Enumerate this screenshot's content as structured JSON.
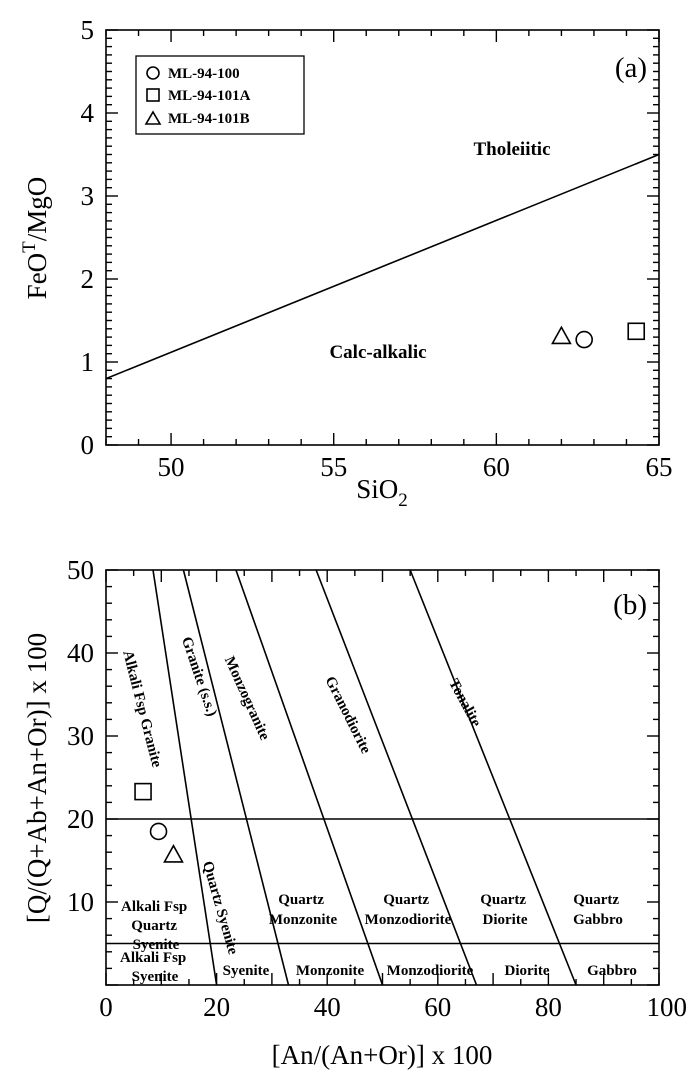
{
  "chart_data": [
    {
      "type": "scatter",
      "panel_label": "(a)",
      "xlabel": "SiO",
      "xlabel_sub": "2",
      "ylabel": "FeO",
      "ylabel_sup": "T",
      "ylabel_tail": "/MgO",
      "xlim": [
        48,
        65
      ],
      "ylim": [
        0,
        5
      ],
      "xticks": [
        "50",
        "55",
        "60",
        "65"
      ],
      "yticks": [
        "0",
        "1",
        "2",
        "3",
        "4",
        "5"
      ],
      "boundary_line": {
        "x": [
          48,
          65
        ],
        "y": [
          0.8,
          3.5
        ]
      },
      "field_labels": [
        "Tholeiitic",
        "Calc-alkalic"
      ],
      "series": [
        {
          "name": "ML-94-100",
          "marker": "circle",
          "x": [
            62.7
          ],
          "y": [
            1.27
          ]
        },
        {
          "name": "ML-94-101A",
          "marker": "square",
          "x": [
            64.3
          ],
          "y": [
            1.37
          ]
        },
        {
          "name": "ML-94-101B",
          "marker": "triangle",
          "x": [
            62.0
          ],
          "y": [
            1.31
          ]
        }
      ],
      "legend_position": "top-left"
    },
    {
      "type": "scatter",
      "panel_label": "(b)",
      "xlabel": "[An/(An+Or)] x 100",
      "ylabel": "[Q/(Q+Ab+An+Or)] x 100",
      "xlim": [
        0,
        100
      ],
      "ylim": [
        0,
        50
      ],
      "xticks": [
        "0",
        "20",
        "40",
        "60",
        "80",
        "100"
      ],
      "yticks": [
        "10",
        "20",
        "30",
        "40",
        "50"
      ],
      "horizontal_boundaries": [
        20,
        5
      ],
      "field_lines": [
        {
          "x": [
            8.5,
            20
          ],
          "y": [
            50,
            0
          ]
        },
        {
          "x": [
            14,
            33
          ],
          "y": [
            50,
            0
          ]
        },
        {
          "x": [
            23.5,
            50
          ],
          "y": [
            50,
            0
          ]
        },
        {
          "x": [
            38,
            67
          ],
          "y": [
            50,
            0
          ]
        },
        {
          "x": [
            55,
            85
          ],
          "y": [
            50,
            0
          ]
        }
      ],
      "upper_fields": [
        "Alkali Fsp Granite",
        "Granite (s.s.)",
        "Monzogranite",
        "Granodiorite",
        "Tonalite"
      ],
      "middle_fields": {
        "afqs": [
          "Alkali Fsp",
          "Quartz",
          "Syenite"
        ],
        "qsyenite": "Quartz Syenite",
        "qmonzonite": [
          "Quartz",
          "Monzonite"
        ],
        "qmonzodiorite": [
          "Quartz",
          "Monzodiorite"
        ],
        "qdiorite": [
          "Quartz",
          "Diorite"
        ],
        "qgabbro": [
          "Quartz",
          "Gabbro"
        ]
      },
      "lower_fields": {
        "afs": [
          "Alkali Fsp",
          "Syenite"
        ],
        "syenite": "Syenite",
        "monzonite": "Monzonite",
        "monzodiorite": "Monzodiorite",
        "diorite": "Diorite",
        "gabbro": "Gabbro"
      },
      "series": [
        {
          "name": "ML-94-100",
          "marker": "circle",
          "x": [
            9.5
          ],
          "y": [
            18.5
          ]
        },
        {
          "name": "ML-94-101A",
          "marker": "square",
          "x": [
            6.7
          ],
          "y": [
            23.3
          ]
        },
        {
          "name": "ML-94-101B",
          "marker": "triangle",
          "x": [
            12.2
          ],
          "y": [
            15.7
          ]
        }
      ]
    }
  ]
}
